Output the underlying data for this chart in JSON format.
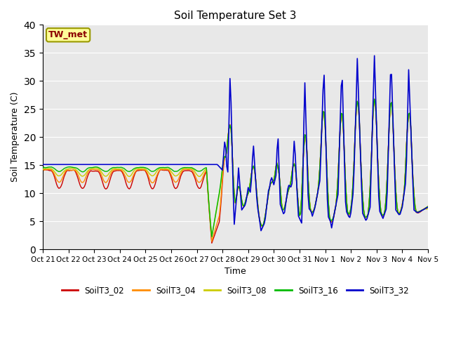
{
  "title": "Soil Temperature Set 3",
  "xlabel": "Time",
  "ylabel": "Soil Temperature (C)",
  "ylim": [
    0,
    40
  ],
  "yticks": [
    0,
    5,
    10,
    15,
    20,
    25,
    30,
    35,
    40
  ],
  "annotation_label": "TW_met",
  "annotation_color": "#8B0000",
  "annotation_bg": "#FFFF99",
  "annotation_border": "#999900",
  "legend_labels": [
    "SoilT3_02",
    "SoilT3_04",
    "SoilT3_08",
    "SoilT3_16",
    "SoilT3_32"
  ],
  "line_colors": [
    "#CC0000",
    "#FF8C00",
    "#CCCC00",
    "#00BB00",
    "#0000CC"
  ],
  "xtick_labels": [
    "Oct 21",
    "Oct 22",
    "Oct 23",
    "Oct 24",
    "Oct 25",
    "Oct 26",
    "Oct 27",
    "Oct 28",
    "Oct 29",
    "Oct 30",
    "Oct 31",
    "Nov 1",
    "Nov 2",
    "Nov 3",
    "Nov 4",
    "Nov 5"
  ],
  "bg_color": "#E8E8E8",
  "fig_bg": "#FFFFFF",
  "grid_color": "#FFFFFF",
  "linewidth": 1.0
}
